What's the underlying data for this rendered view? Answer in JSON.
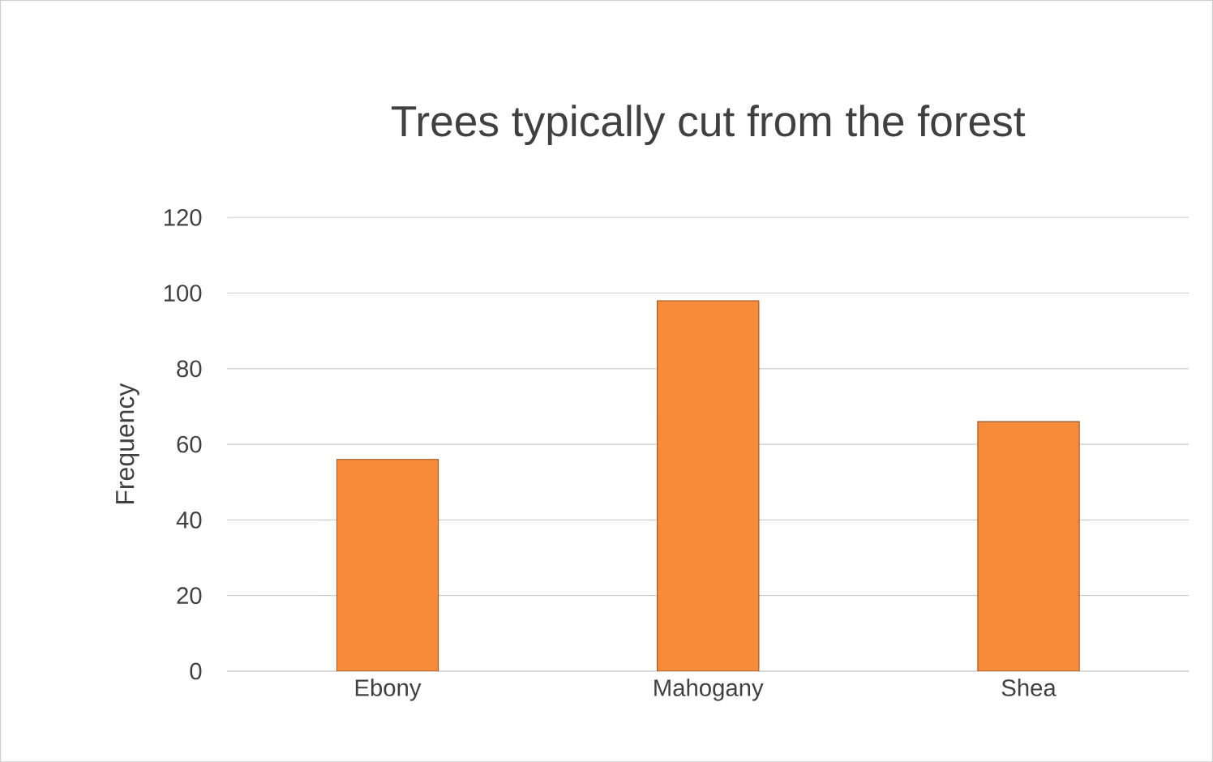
{
  "chart_data": {
    "type": "bar",
    "title": "Trees typically cut from the forest",
    "ylabel": "Frequency",
    "categories": [
      "Ebony",
      "Mahogany",
      "Shea"
    ],
    "values": [
      56,
      98,
      66
    ],
    "color": "#f88b3a",
    "ylim": [
      0,
      120
    ],
    "yticks": [
      0,
      20,
      40,
      60,
      80,
      100,
      120
    ],
    "grid": "y"
  }
}
